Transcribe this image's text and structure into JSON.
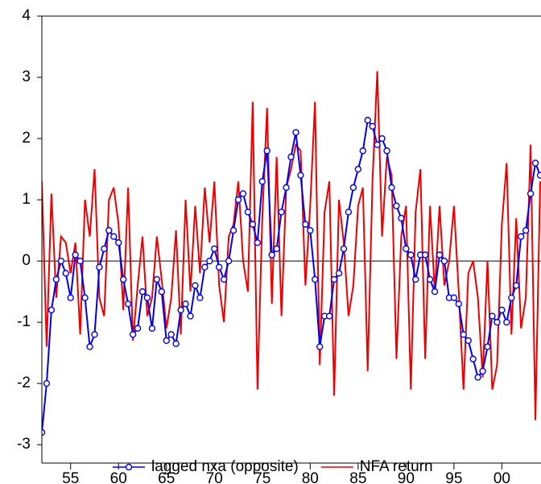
{
  "chart_data": {
    "type": "line",
    "x": [
      1952,
      1952.5,
      1953,
      1953.5,
      1954,
      1954.5,
      1955,
      1955.5,
      1956,
      1956.5,
      1957,
      1957.5,
      1958,
      1958.5,
      1959,
      1959.5,
      1960,
      1960.5,
      1961,
      1961.5,
      1962,
      1962.5,
      1963,
      1963.5,
      1964,
      1964.5,
      1965,
      1965.5,
      1966,
      1966.5,
      1967,
      1967.5,
      1968,
      1968.5,
      1969,
      1969.5,
      1970,
      1970.5,
      1971,
      1971.5,
      1972,
      1972.5,
      1973,
      1973.5,
      1974,
      1974.5,
      1975,
      1975.5,
      1976,
      1976.5,
      1977,
      1977.5,
      1978,
      1978.5,
      1979,
      1979.5,
      1980,
      1980.5,
      1981,
      1981.5,
      1982,
      1982.5,
      1983,
      1983.5,
      1984,
      1984.5,
      1985,
      1985.5,
      1986,
      1986.5,
      1987,
      1987.5,
      1988,
      1988.5,
      1989,
      1989.5,
      1990,
      1990.5,
      1991,
      1991.5,
      1992,
      1992.5,
      1993,
      1993.5,
      1994,
      1994.5,
      1995,
      1995.5,
      1996,
      1996.5,
      1997,
      1997.5,
      1998,
      1998.5,
      1999,
      1999.5,
      2000,
      2000.5,
      2001,
      2001.5,
      2002,
      2002.5,
      2003,
      2003.5,
      2004
    ],
    "series": [
      {
        "name": "lagged nxa (opposite)",
        "color": "#0000ee",
        "marker": "circle",
        "values": [
          -2.8,
          -2.0,
          -0.8,
          -0.3,
          0.0,
          -0.2,
          -0.6,
          0.1,
          0.0,
          -0.6,
          -1.4,
          -1.2,
          -0.1,
          0.2,
          0.5,
          0.4,
          0.3,
          -0.3,
          -0.7,
          -1.2,
          -1.1,
          -0.5,
          -0.6,
          -1.1,
          -0.3,
          -0.5,
          -1.3,
          -1.2,
          -1.35,
          -0.8,
          -0.7,
          -0.9,
          -0.4,
          -0.6,
          -0.1,
          0.0,
          0.2,
          -0.1,
          -0.3,
          0.0,
          0.5,
          1.0,
          1.1,
          0.8,
          0.6,
          0.3,
          1.3,
          1.8,
          0.1,
          0.2,
          0.8,
          1.2,
          1.7,
          2.1,
          1.4,
          0.6,
          0.5,
          -0.3,
          -1.4,
          -0.9,
          -0.9,
          -0.3,
          -0.2,
          0.2,
          0.8,
          1.2,
          1.5,
          1.8,
          2.3,
          2.2,
          1.9,
          2.0,
          1.8,
          1.2,
          0.9,
          0.7,
          0.2,
          0.1,
          -0.3,
          0.1,
          0.1,
          -0.3,
          -0.5,
          0.1,
          0.0,
          -0.6,
          -0.6,
          -0.7,
          -1.2,
          -1.3,
          -1.6,
          -1.9,
          -1.8,
          -1.4,
          -0.9,
          -1.0,
          -0.8,
          -1.0,
          -0.6,
          -0.4,
          0.4,
          0.5,
          1.1,
          1.6,
          1.4
        ]
      },
      {
        "name": "NFA return",
        "color": "#ee0000",
        "values": [
          1.3,
          -1.4,
          1.1,
          -0.6,
          0.4,
          0.3,
          -0.2,
          0.3,
          -1.2,
          1.0,
          0.4,
          1.5,
          -0.6,
          -0.9,
          1.0,
          1.2,
          0.6,
          -0.8,
          1.2,
          -1.3,
          -0.4,
          0.4,
          -0.9,
          -0.6,
          0.4,
          -0.3,
          -1.1,
          -0.6,
          0.5,
          -1.2,
          1.0,
          -0.5,
          0.9,
          -0.2,
          1.2,
          0.3,
          1.3,
          -0.4,
          -1.0,
          0.4,
          0.6,
          1.3,
          0.0,
          -0.5,
          2.6,
          -2.1,
          0.7,
          2.5,
          -0.7,
          1.7,
          -0.9,
          1.2,
          1.5,
          1.9,
          1.8,
          -0.4,
          0.9,
          2.6,
          -1.7,
          0.8,
          1.3,
          -2.2,
          1.0,
          0.3,
          -0.9,
          -0.4,
          0.9,
          1.2,
          -1.8,
          1.3,
          3.1,
          0.4,
          1.7,
          1.4,
          -1.6,
          0.4,
          0.9,
          -2.1,
          0.8,
          1.5,
          -1.6,
          0.9,
          -0.5,
          0.9,
          -0.4,
          0.0,
          0.9,
          -0.5,
          -2.1,
          -0.2,
          0.0,
          -0.6,
          -1.9,
          0.0,
          -2.1,
          -1.7,
          0.6,
          1.6,
          -1.2,
          0.7,
          -1.1,
          -0.6,
          1.9,
          -2.6,
          1.3
        ]
      }
    ],
    "xlim": [
      1952,
      2004
    ],
    "xticks": [
      {
        "value": 1955,
        "label": "55"
      },
      {
        "value": 1960,
        "label": "60"
      },
      {
        "value": 1965,
        "label": "65"
      },
      {
        "value": 1970,
        "label": "70"
      },
      {
        "value": 1975,
        "label": "75"
      },
      {
        "value": 1980,
        "label": "80"
      },
      {
        "value": 1985,
        "label": "85"
      },
      {
        "value": 1990,
        "label": "90"
      },
      {
        "value": 1995,
        "label": "95"
      },
      {
        "value": 2000,
        "label": "00"
      }
    ],
    "ylim": [
      -3.3,
      4
    ],
    "yticks": [
      -3,
      -2,
      -1,
      0,
      1,
      2,
      3,
      4
    ],
    "zero_line": true,
    "legend": "bottom"
  }
}
